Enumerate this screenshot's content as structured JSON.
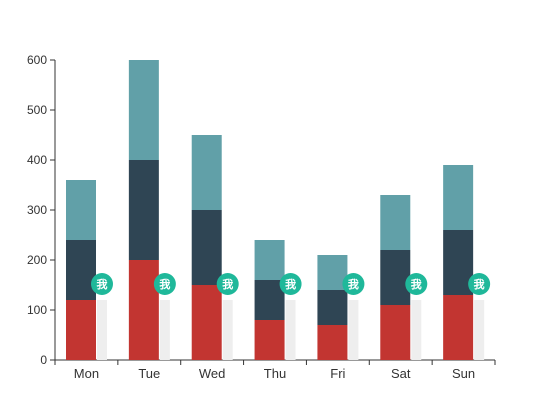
{
  "chart_data": {
    "type": "bar",
    "stacked": true,
    "categories": [
      "Mon",
      "Tue",
      "Wed",
      "Thu",
      "Fri",
      "Sat",
      "Sun"
    ],
    "series": [
      {
        "values": [
          120,
          200,
          150,
          80,
          70,
          110,
          130
        ],
        "color": "#c23531"
      },
      {
        "values": [
          120,
          200,
          150,
          80,
          70,
          110,
          130
        ],
        "color": "#2f4554"
      },
      {
        "values": [
          120,
          200,
          150,
          80,
          70,
          110,
          130
        ],
        "color": "#61a0a8"
      }
    ],
    "ylim": [
      0,
      600
    ],
    "yticks": [
      0,
      100,
      200,
      300,
      400,
      500,
      600
    ],
    "grid": false,
    "marker": {
      "label": "我",
      "value": 150,
      "color": "#1fb89a",
      "shadow_bar_value": 120,
      "shadow_bar_color": "#eeeeee"
    }
  }
}
